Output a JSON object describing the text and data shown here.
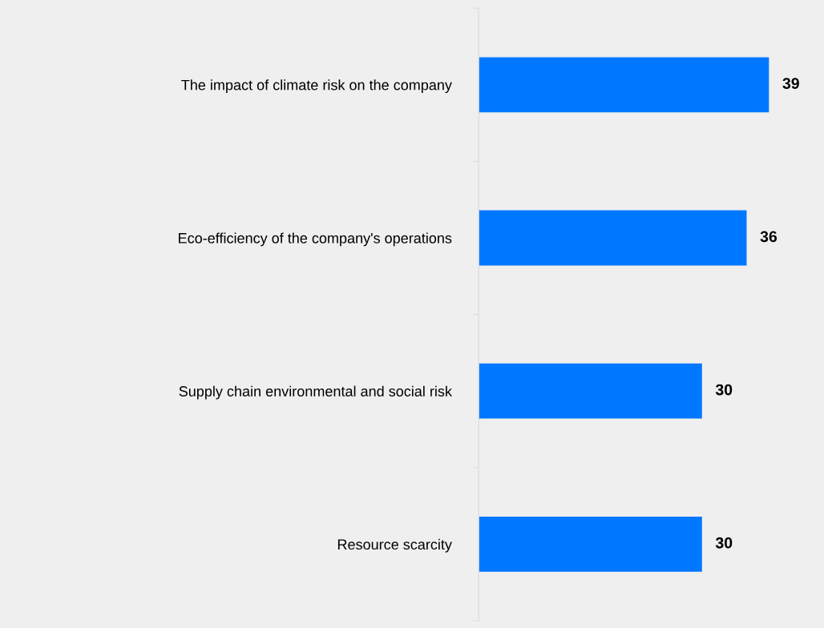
{
  "chart_data": {
    "type": "bar",
    "orientation": "horizontal",
    "categories": [
      "The impact of climate risk on the company",
      "Eco-efficiency of the company's operations",
      "Supply chain environmental and social risk",
      "Resource scarcity"
    ],
    "values": [
      39,
      36,
      30,
      30
    ],
    "color": "#0077ff",
    "data_labels": true,
    "grid": false,
    "legend": false
  }
}
